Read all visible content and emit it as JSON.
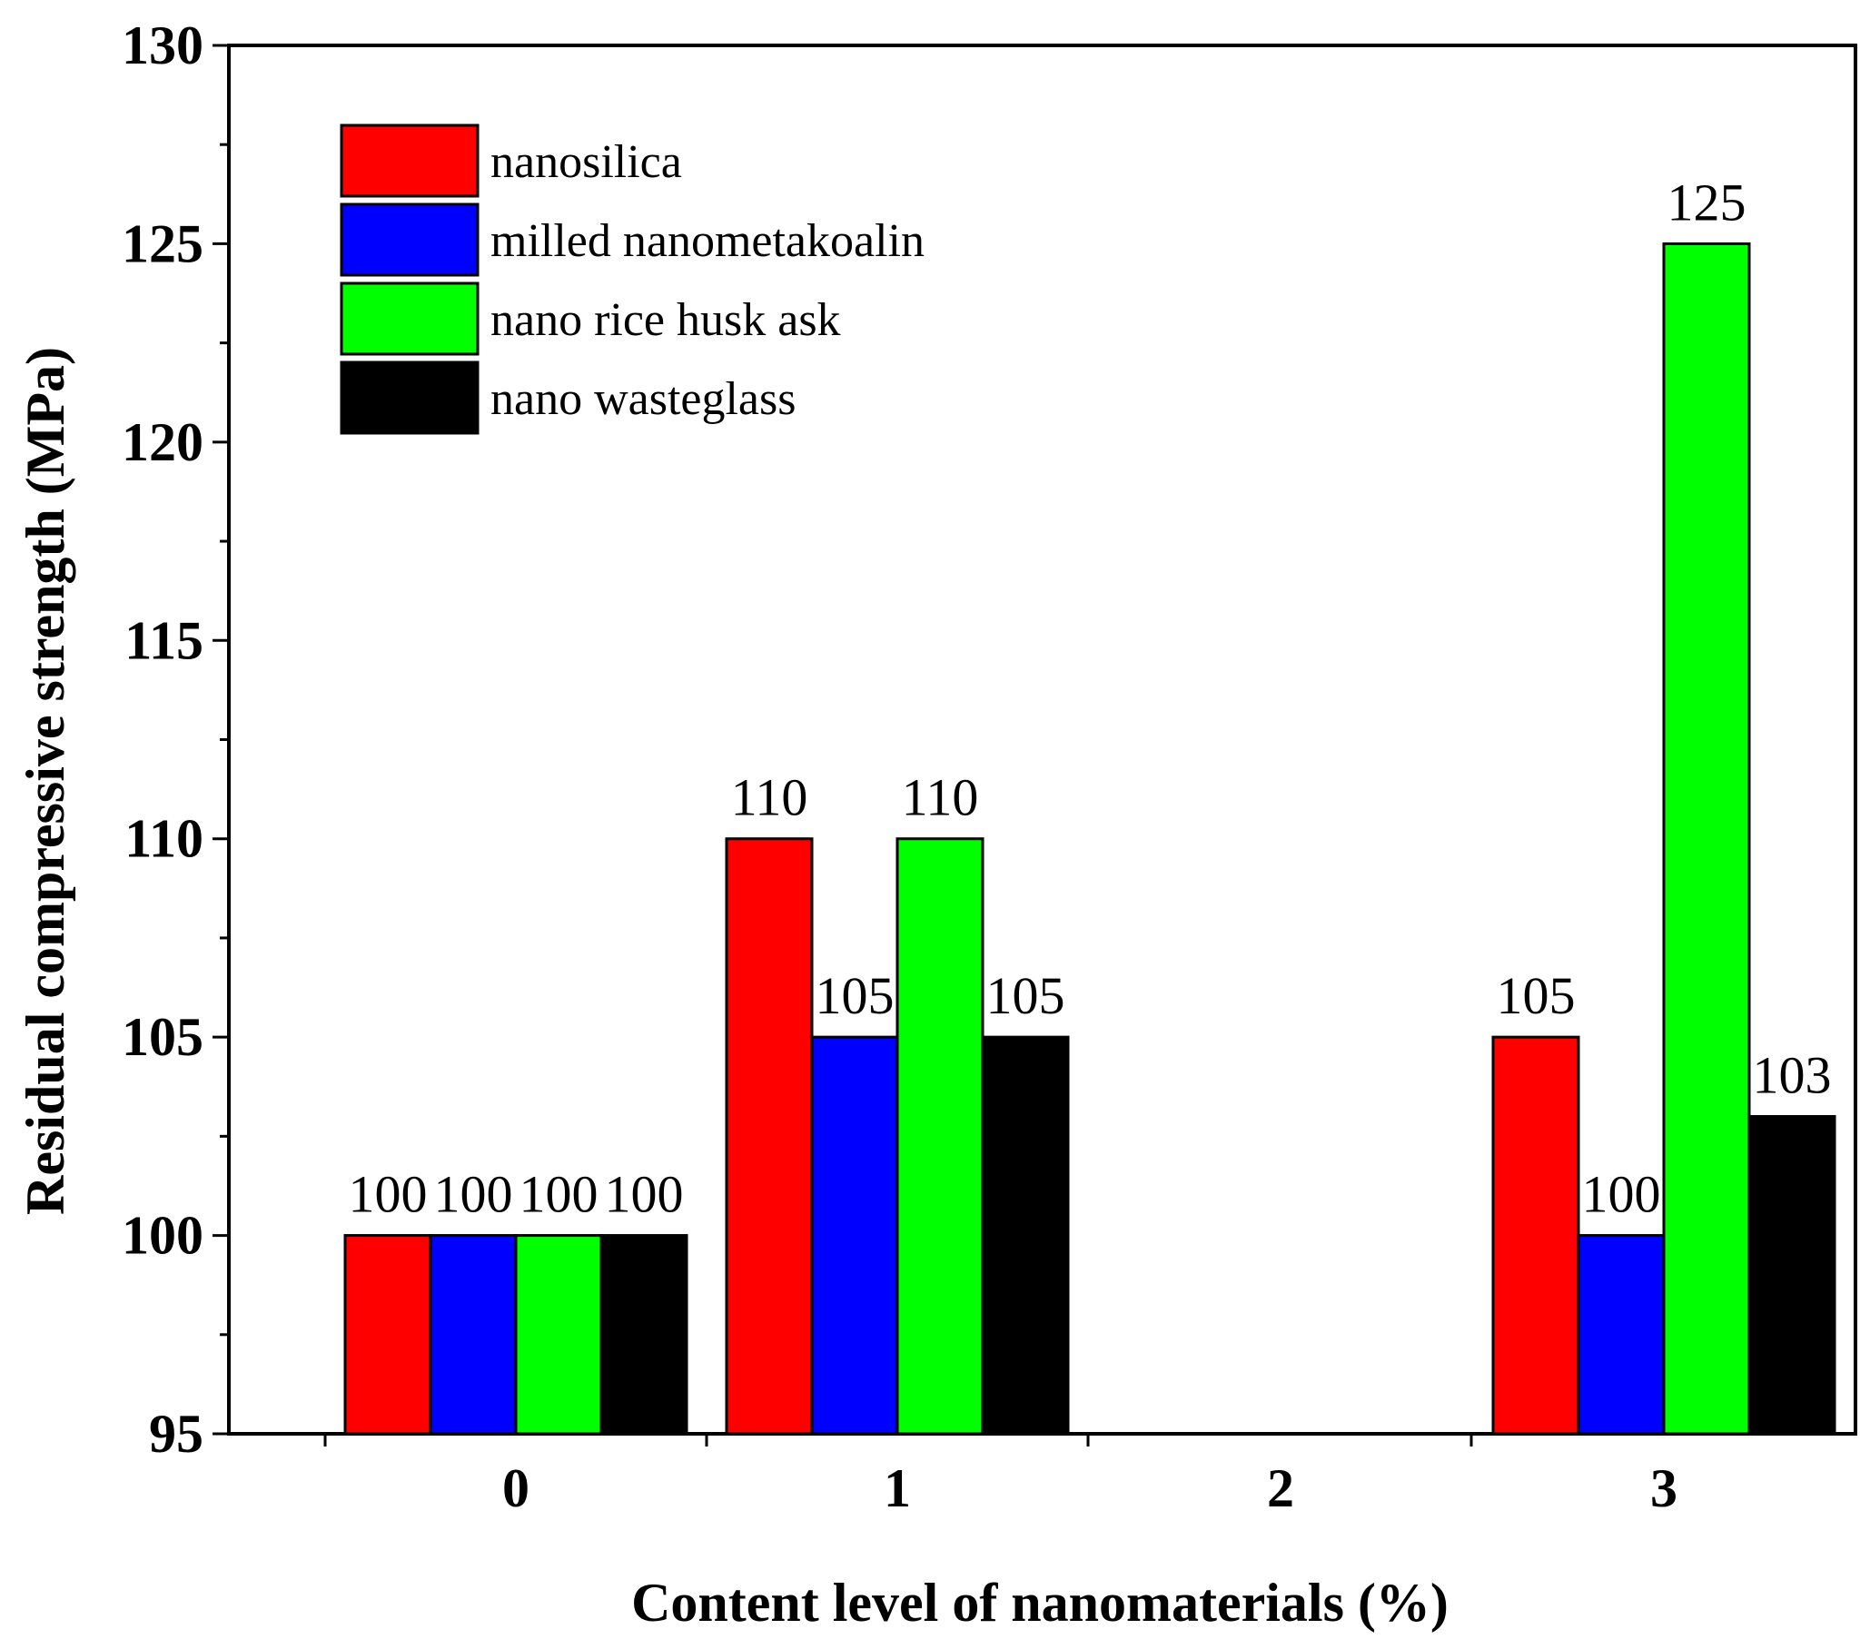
{
  "chart_data": {
    "type": "bar",
    "title": "",
    "xlabel": "Content level of nanomaterials (%)",
    "ylabel": "Residual compressive strength (MPa)",
    "ylim": [
      95,
      130
    ],
    "yticks": [
      "95",
      "100",
      "105",
      "110",
      "115",
      "120",
      "125",
      "130"
    ],
    "ytick_values": [
      95,
      100,
      105,
      110,
      115,
      120,
      125,
      130
    ],
    "categories": [
      "0",
      "1",
      "2",
      "3"
    ],
    "legend_position": "top-left",
    "grid": false,
    "series": [
      {
        "name": "nanosilica",
        "color": "#ff0000",
        "values": [
          100,
          110,
          null,
          105
        ],
        "labels": [
          "100",
          "110",
          "",
          "105"
        ]
      },
      {
        "name": "milled nanometakoalin",
        "color": "#0000ff",
        "values": [
          100,
          105,
          null,
          100
        ],
        "labels": [
          "100",
          "105",
          "",
          "100"
        ]
      },
      {
        "name": "nano rice husk ask",
        "color": "#00ff00",
        "values": [
          100,
          110,
          null,
          125
        ],
        "labels": [
          "100",
          "110",
          "",
          "125"
        ]
      },
      {
        "name": "nano wasteglass",
        "color": "#000000",
        "values": [
          100,
          105,
          null,
          103
        ],
        "labels": [
          "100",
          "105",
          "",
          "103"
        ]
      }
    ]
  }
}
